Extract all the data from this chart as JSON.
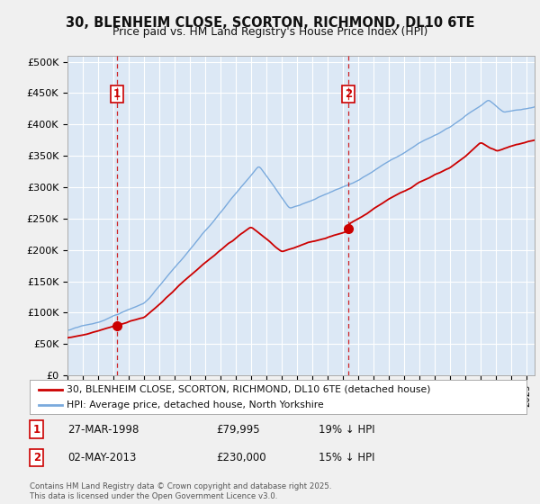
{
  "title": "30, BLENHEIM CLOSE, SCORTON, RICHMOND, DL10 6TE",
  "subtitle": "Price paid vs. HM Land Registry's House Price Index (HPI)",
  "bg_color": "#f0f0f0",
  "plot_bg_color": "#dce8f5",
  "hpi_color": "#7aaadd",
  "price_color": "#cc0000",
  "dashed_color": "#cc0000",
  "ylim": [
    0,
    510000
  ],
  "yticks": [
    0,
    50000,
    100000,
    150000,
    200000,
    250000,
    300000,
    350000,
    400000,
    450000,
    500000
  ],
  "ytick_labels": [
    "£0",
    "£50K",
    "£100K",
    "£150K",
    "£200K",
    "£250K",
    "£300K",
    "£350K",
    "£400K",
    "£450K",
    "£500K"
  ],
  "sale1_x": 1998.21,
  "sale1_price": 79995,
  "sale2_x": 2013.33,
  "sale2_price": 230000,
  "legend_price_label": "30, BLENHEIM CLOSE, SCORTON, RICHMOND, DL10 6TE (detached house)",
  "legend_hpi_label": "HPI: Average price, detached house, North Yorkshire",
  "annotation1_date": "27-MAR-1998",
  "annotation1_price": "£79,995",
  "annotation1_pct": "19% ↓ HPI",
  "annotation2_date": "02-MAY-2013",
  "annotation2_price": "£230,000",
  "annotation2_pct": "15% ↓ HPI",
  "footer": "Contains HM Land Registry data © Crown copyright and database right 2025.\nThis data is licensed under the Open Government Licence v3.0.",
  "xstart": 1995.0,
  "xend": 2025.5
}
